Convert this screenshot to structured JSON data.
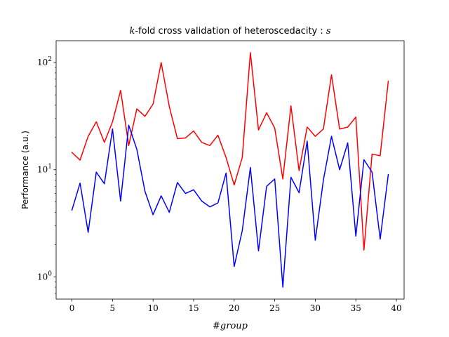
{
  "chart_data": {
    "type": "line",
    "title_parts": {
      "italic_prefix": "k",
      "text": "-fold cross validation of heteroscedacity : ",
      "italic_suffix": "s"
    },
    "xlabel": "#group",
    "ylabel": "Performance (a.u.)",
    "yscale": "log",
    "xlim": [
      -1.95,
      40.95
    ],
    "ylim": [
      0.62,
      160
    ],
    "xticks": [
      0,
      5,
      10,
      15,
      20,
      25,
      30,
      35,
      40
    ],
    "yticks": [
      {
        "value": 1,
        "base": "10",
        "exp": "0"
      },
      {
        "value": 10,
        "base": "10",
        "exp": "1"
      },
      {
        "value": 100,
        "base": "10",
        "exp": "2"
      }
    ],
    "x": [
      0,
      1,
      2,
      3,
      4,
      5,
      6,
      7,
      8,
      9,
      10,
      11,
      12,
      13,
      14,
      15,
      16,
      17,
      18,
      19,
      20,
      21,
      22,
      23,
      24,
      25,
      26,
      27,
      28,
      29,
      30,
      31,
      32,
      33,
      34,
      35,
      36,
      37,
      38,
      39
    ],
    "series": [
      {
        "color": "#ff0000",
        "values": [
          14.5,
          12.3,
          20.5,
          28.0,
          18.0,
          28.0,
          55.0,
          16.8,
          37.0,
          31.5,
          41.0,
          100.0,
          39.0,
          19.5,
          19.8,
          23.0,
          18.0,
          16.8,
          21.0,
          13.0,
          7.2,
          13.0,
          124.0,
          23.5,
          34.0,
          24.5,
          8.2,
          39.5,
          9.8,
          25.0,
          20.5,
          24.0,
          77.0,
          24.0,
          25.0,
          31.0,
          1.78,
          14.0,
          13.5,
          67.0
        ]
      },
      {
        "color": "#0000ff",
        "values": [
          4.2,
          7.5,
          2.6,
          9.5,
          7.4,
          24.0,
          5.1,
          26.0,
          15.5,
          6.3,
          3.8,
          5.7,
          4.0,
          7.6,
          6.0,
          6.5,
          5.1,
          4.5,
          4.9,
          9.3,
          1.25,
          2.7,
          10.5,
          1.75,
          7.0,
          8.2,
          0.8,
          8.5,
          6.1,
          18.5,
          2.2,
          8.0,
          20.5,
          10.0,
          17.8,
          2.4,
          12.4,
          9.5,
          2.25,
          9.0
        ]
      }
    ]
  }
}
